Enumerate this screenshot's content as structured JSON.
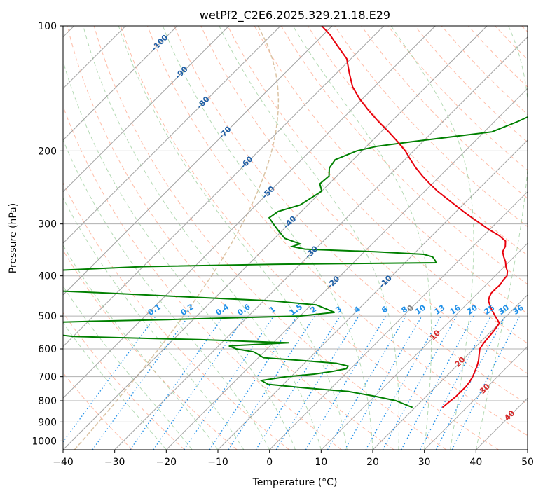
{
  "chart_data": {
    "type": "line",
    "title": "wetPf2_C2E6.2025.329.21.18.E29",
    "xlabel": "Temperature (°C)",
    "ylabel": "Pressure (hPa)",
    "xlim": [
      -40,
      50
    ],
    "ylim": [
      1050,
      100
    ],
    "y_scale": "log",
    "grid": true,
    "x_ticks": [
      -40,
      -30,
      -20,
      -10,
      0,
      10,
      20,
      30,
      40,
      50
    ],
    "x_tick_labels": [
      "−40",
      "−30",
      "−20",
      "−10",
      "0",
      "10",
      "20",
      "30",
      "40",
      "50"
    ],
    "y_ticks": [
      1000,
      900,
      800,
      700,
      600,
      500,
      400,
      300,
      200,
      100
    ],
    "y_tick_labels": [
      "1000",
      "900",
      "800",
      "700",
      "600",
      "500",
      "400",
      "300",
      "200",
      "100"
    ],
    "colors": {
      "temperature": "#e8000b",
      "dewpoint": "#008000",
      "isotherm": "#999999",
      "dry_adiabat": "#ff9a7a",
      "moist_adiabat": "#77bb77",
      "mixing_ratio": "#1f8fe8",
      "special": "#d2b48c",
      "isotherm_label_neg": "#1f5fa6",
      "isotherm_label_pos": "#d62728",
      "isotherm_label_zero": "#7f7f7f"
    },
    "skew": 1.0,
    "temperature": {
      "p": [
        830,
        820,
        800,
        780,
        760,
        740,
        720,
        700,
        680,
        660,
        640,
        620,
        600,
        580,
        560,
        540,
        520,
        500,
        480,
        460,
        450,
        440,
        430,
        420,
        410,
        400,
        390,
        380,
        370,
        360,
        350,
        340,
        330,
        320,
        310,
        300,
        290,
        280,
        270,
        260,
        250,
        240,
        230,
        220,
        210,
        200,
        190,
        180,
        170,
        160,
        150,
        140,
        130,
        120,
        110,
        105,
        100
      ],
      "t": [
        25.3,
        25.4,
        25.6,
        25.8,
        25.8,
        25.8,
        25.6,
        25.2,
        24.6,
        24.0,
        23.2,
        22.2,
        21.2,
        20.8,
        20.6,
        20.4,
        20.0,
        17.8,
        15.6,
        13.6,
        13.0,
        12.6,
        12.6,
        12.7,
        12.4,
        12.3,
        11.5,
        10.3,
        9.3,
        8.0,
        6.8,
        6.3,
        5.3,
        3.0,
        0.0,
        -2.8,
        -5.7,
        -8.6,
        -11.5,
        -14.5,
        -17.6,
        -20.5,
        -23.4,
        -26.2,
        -28.9,
        -31.6,
        -34.9,
        -38.5,
        -42.5,
        -46.5,
        -50.5,
        -54.3,
        -57.5,
        -60.8,
        -66.0,
        -68.7,
        -72.0
      ]
    },
    "dewpoint": {
      "p": [
        830,
        820,
        800,
        780,
        760,
        745,
        730,
        715,
        700,
        690,
        680,
        670,
        660,
        650,
        640,
        630,
        620,
        610,
        600,
        590,
        580,
        570,
        560,
        550,
        540,
        535,
        530,
        525,
        520,
        515,
        510,
        500,
        490,
        480,
        470,
        460,
        450,
        440,
        435,
        430,
        420,
        400,
        390,
        380,
        375,
        372,
        368,
        360,
        355,
        350,
        345,
        340,
        335,
        330,
        325,
        320,
        315,
        310,
        305,
        300,
        290,
        280,
        270,
        250,
        240,
        230,
        220,
        210,
        200,
        195,
        190,
        180,
        170,
        160,
        150,
        140,
        130,
        125,
        120,
        115,
        110,
        105,
        100
      ],
      "td": [
        19.5,
        18.0,
        15.0,
        10.0,
        4.0,
        -5.0,
        -13.0,
        -15.0,
        -11.0,
        -6.0,
        -3.0,
        -0.8,
        -1.0,
        -3.8,
        -11.0,
        -19.0,
        -20.5,
        -22.0,
        -26.0,
        -28.0,
        -17.0,
        -35.0,
        -60.0,
        -66.0,
        -70.0,
        -72.0,
        -75.0,
        -77.0,
        -72.0,
        -60.0,
        -45.0,
        -20.0,
        -14.0,
        -16.5,
        -19.0,
        -28.0,
        -45.0,
        -62.0,
        -72.0,
        -82.0,
        -85.0,
        -85.0,
        -80.0,
        -60.0,
        -34.0,
        -4.0,
        -4.5,
        -5.8,
        -8.0,
        -18.0,
        -32.0,
        -35.0,
        -34.0,
        -36.0,
        -38.0,
        -39.0,
        -40.0,
        -41.0,
        -42.0,
        -43.0,
        -45.0,
        -44.5,
        -41.5,
        -40.0,
        -41.8,
        -41.5,
        -43.0,
        -43.5,
        -41.0,
        -38.0,
        -32.0,
        -18.5,
        -15.5,
        -13.0,
        -12.0,
        -10.5,
        -6.5,
        -1.3,
        -2.5,
        -3.5,
        -3.0,
        -0.8,
        2.5
      ]
    },
    "isotherm_labels": [
      {
        "t": -100,
        "text": "-100"
      },
      {
        "t": -90,
        "text": "-90"
      },
      {
        "t": -80,
        "text": "-80"
      },
      {
        "t": -70,
        "text": "-70"
      },
      {
        "t": -60,
        "text": "-60"
      },
      {
        "t": -50,
        "text": "-50"
      },
      {
        "t": -40,
        "text": "-40"
      },
      {
        "t": -30,
        "text": "-30"
      },
      {
        "t": -20,
        "text": "-20"
      },
      {
        "t": -10,
        "text": "-10"
      },
      {
        "t": 0,
        "text": "0"
      },
      {
        "t": 10,
        "text": "10"
      },
      {
        "t": 20,
        "text": "20"
      },
      {
        "t": 30,
        "text": "30"
      },
      {
        "t": 40,
        "text": "40"
      }
    ],
    "mixing_ratios": [
      {
        "w": 0.1,
        "text": "0.1"
      },
      {
        "w": 0.2,
        "text": "0.2"
      },
      {
        "w": 0.4,
        "text": "0.4"
      },
      {
        "w": 0.6,
        "text": "0.6"
      },
      {
        "w": 1,
        "text": "1"
      },
      {
        "w": 1.5,
        "text": "1.5"
      },
      {
        "w": 2,
        "text": "2"
      },
      {
        "w": 3,
        "text": "3"
      },
      {
        "w": 4,
        "text": "4"
      },
      {
        "w": 6,
        "text": "6"
      },
      {
        "w": 8,
        "text": "8"
      },
      {
        "w": 10,
        "text": "10"
      },
      {
        "w": 13,
        "text": "13"
      },
      {
        "w": 16,
        "text": "16"
      },
      {
        "w": 20,
        "text": "20"
      },
      {
        "w": 25,
        "text": "25"
      },
      {
        "w": 30,
        "text": "30"
      },
      {
        "w": 36,
        "text": "36"
      }
    ]
  }
}
